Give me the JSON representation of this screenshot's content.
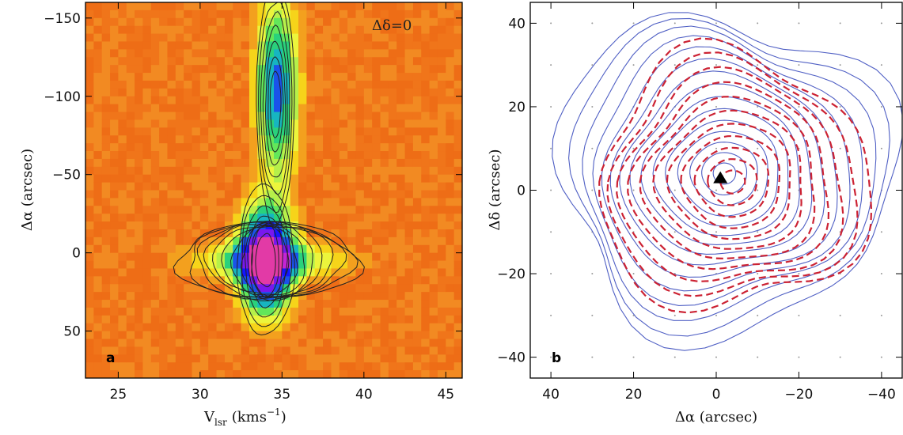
{
  "chart_data": [
    {
      "panel": "a",
      "type": "heatmap",
      "title": "",
      "annotation": "Δδ=0",
      "xlabel": "V",
      "xlabel_sub": "lsr",
      "xlabel_units": "(kms",
      "xlabel_sup": "−1",
      "xlabel_close": ")",
      "ylabel": "Δα (arcsec)",
      "xlim": [
        23,
        46
      ],
      "ylim": [
        80,
        -160
      ],
      "xticks": [
        25,
        30,
        35,
        40,
        45
      ],
      "xtick_labels": [
        "25",
        "30",
        "35",
        "40",
        "45"
      ],
      "yticks": [
        -150,
        -100,
        -50,
        0,
        50
      ],
      "ytick_labels": [
        "−150",
        "−100",
        "−50",
        "0",
        "50"
      ],
      "colorscale": [
        "#f07a1a",
        "#f3a01e",
        "#f6d41a",
        "#ecf53c",
        "#b6f04a",
        "#63e75a",
        "#2ad17c",
        "#17b5c0",
        "#1a52ea",
        "#1414ff",
        "#7818ee",
        "#c424d6",
        "#e23aa6"
      ],
      "components": [
        {
          "kind": "core",
          "x": 34.0,
          "y": 5,
          "sx": 1.1,
          "sy": 22,
          "peak": 1.0
        },
        {
          "kind": "wing",
          "x": 34.2,
          "y": 5,
          "sx": 3.4,
          "sy": 8,
          "peak": 0.34
        },
        {
          "kind": "filament",
          "x": 34.7,
          "y": -105,
          "sx": 0.9,
          "sy": 40,
          "peak": 0.55
        }
      ]
    },
    {
      "panel": "b",
      "type": "contour",
      "title": "",
      "xlabel": "Δα (arcsec)",
      "ylabel": "Δδ (arcsec)",
      "xlim": [
        45,
        -45
      ],
      "ylim": [
        -45,
        45
      ],
      "xticks": [
        40,
        20,
        0,
        -20,
        -40
      ],
      "xtick_labels": [
        "40",
        "20",
        "0",
        "−20",
        "−40"
      ],
      "yticks": [
        40,
        20,
        0,
        -20,
        -40
      ],
      "ytick_labels": [
        "40",
        "20",
        "0",
        "−20",
        "−40"
      ],
      "grid": "dotted",
      "series": [
        {
          "style": "solid",
          "color": "#4f5fc4",
          "center": [
            -2,
            4
          ],
          "levels": 15,
          "outer_radius": 40
        },
        {
          "style": "dashed",
          "color": "#cc2233",
          "center": [
            -4,
            2
          ],
          "levels": 11,
          "outer_radius": 32
        }
      ],
      "marker": {
        "shape": "triangle",
        "x": -1,
        "y": 3,
        "color": "#000000"
      }
    }
  ]
}
